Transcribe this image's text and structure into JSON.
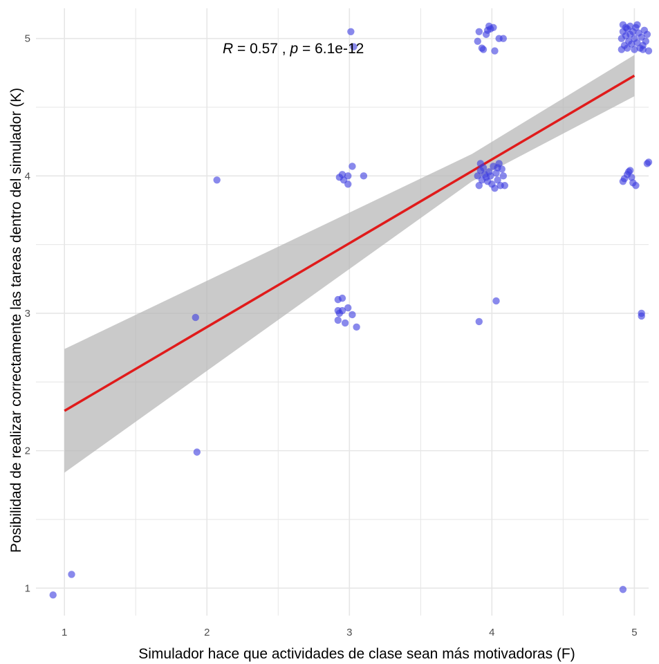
{
  "chart_data": {
    "type": "scatter",
    "title": "",
    "xlabel": "Simulador hace que actividades de clase sean más motivadoras (F)",
    "ylabel": "Posibilidad de realizar correctamente las tareas dentro del simulador (K)",
    "xlim": [
      0.8,
      5.1
    ],
    "ylim": [
      0.8,
      5.22
    ],
    "x_ticks": [
      1,
      2,
      3,
      4,
      5
    ],
    "y_ticks": [
      1,
      2,
      3,
      4,
      5
    ],
    "grid": true,
    "legend": "none",
    "annotation": {
      "r_symbol": "R",
      "r_text": " = 0.57 , ",
      "p_symbol": "p",
      "p_text": " = 6.1e-12"
    },
    "colors": {
      "points": "#3a3ae0",
      "fit_line": "#e01b1b",
      "confidence_band": "#b3b3b3",
      "grid": "#e6e6e6"
    },
    "fit": {
      "x": [
        1,
        5
      ],
      "y": [
        2.29,
        4.73
      ],
      "ci_lower": [
        1.84,
        4.58
      ],
      "ci_upper": [
        2.74,
        4.88
      ],
      "ci_mid_x": 3.86,
      "ci_mid_lower": 3.96,
      "ci_mid_upper": 4.16
    },
    "points": [
      {
        "x": 0.92,
        "y": 0.95
      },
      {
        "x": 1.05,
        "y": 1.1
      },
      {
        "x": 1.92,
        "y": 2.97
      },
      {
        "x": 1.93,
        "y": 1.99
      },
      {
        "x": 2.07,
        "y": 3.97
      },
      {
        "x": 2.92,
        "y": 3.1
      },
      {
        "x": 2.95,
        "y": 3.11
      },
      {
        "x": 2.92,
        "y": 3.02
      },
      {
        "x": 2.93,
        "y": 3.0
      },
      {
        "x": 2.95,
        "y": 3.02
      },
      {
        "x": 2.99,
        "y": 3.04
      },
      {
        "x": 2.92,
        "y": 2.95
      },
      {
        "x": 2.97,
        "y": 2.93
      },
      {
        "x": 3.02,
        "y": 2.99
      },
      {
        "x": 3.05,
        "y": 2.9
      },
      {
        "x": 2.93,
        "y": 3.99
      },
      {
        "x": 2.95,
        "y": 4.01
      },
      {
        "x": 2.96,
        "y": 3.97
      },
      {
        "x": 2.99,
        "y": 3.94
      },
      {
        "x": 2.99,
        "y": 4.0
      },
      {
        "x": 3.02,
        "y": 4.07
      },
      {
        "x": 3.1,
        "y": 4.0
      },
      {
        "x": 3.01,
        "y": 5.05
      },
      {
        "x": 3.03,
        "y": 4.94
      },
      {
        "x": 3.91,
        "y": 2.94
      },
      {
        "x": 4.03,
        "y": 3.09
      },
      {
        "x": 3.9,
        "y": 4.0
      },
      {
        "x": 3.91,
        "y": 3.93
      },
      {
        "x": 3.92,
        "y": 4.04
      },
      {
        "x": 3.93,
        "y": 3.97
      },
      {
        "x": 3.94,
        "y": 4.06
      },
      {
        "x": 3.95,
        "y": 4.01
      },
      {
        "x": 3.96,
        "y": 3.99
      },
      {
        "x": 3.97,
        "y": 3.96
      },
      {
        "x": 3.98,
        "y": 4.03
      },
      {
        "x": 3.99,
        "y": 4.0
      },
      {
        "x": 4.0,
        "y": 3.94
      },
      {
        "x": 4.01,
        "y": 4.07
      },
      {
        "x": 4.02,
        "y": 3.91
      },
      {
        "x": 4.03,
        "y": 4.02
      },
      {
        "x": 4.04,
        "y": 3.97
      },
      {
        "x": 4.05,
        "y": 4.09
      },
      {
        "x": 4.06,
        "y": 3.93
      },
      {
        "x": 4.07,
        "y": 4.05
      },
      {
        "x": 4.08,
        "y": 4.0
      },
      {
        "x": 4.09,
        "y": 3.93
      },
      {
        "x": 3.92,
        "y": 4.09
      },
      {
        "x": 4.04,
        "y": 4.06
      },
      {
        "x": 3.9,
        "y": 4.98
      },
      {
        "x": 3.91,
        "y": 5.05
      },
      {
        "x": 3.93,
        "y": 4.93
      },
      {
        "x": 3.94,
        "y": 4.92
      },
      {
        "x": 3.96,
        "y": 5.03
      },
      {
        "x": 3.97,
        "y": 5.06
      },
      {
        "x": 3.98,
        "y": 5.09
      },
      {
        "x": 3.99,
        "y": 5.07
      },
      {
        "x": 4.01,
        "y": 5.08
      },
      {
        "x": 4.02,
        "y": 4.91
      },
      {
        "x": 4.05,
        "y": 5.0
      },
      {
        "x": 4.08,
        "y": 5.0
      },
      {
        "x": 4.92,
        "y": 0.99
      },
      {
        "x": 5.05,
        "y": 3.0
      },
      {
        "x": 5.05,
        "y": 2.98
      },
      {
        "x": 4.92,
        "y": 3.96
      },
      {
        "x": 4.93,
        "y": 3.98
      },
      {
        "x": 4.95,
        "y": 4.01
      },
      {
        "x": 4.96,
        "y": 4.03
      },
      {
        "x": 4.97,
        "y": 4.04
      },
      {
        "x": 4.98,
        "y": 3.99
      },
      {
        "x": 4.99,
        "y": 3.95
      },
      {
        "x": 5.01,
        "y": 3.93
      },
      {
        "x": 5.09,
        "y": 4.09
      },
      {
        "x": 5.1,
        "y": 4.1
      },
      {
        "x": 4.91,
        "y": 4.92
      },
      {
        "x": 4.91,
        "y": 5.0
      },
      {
        "x": 4.92,
        "y": 5.05
      },
      {
        "x": 4.92,
        "y": 5.1
      },
      {
        "x": 4.93,
        "y": 4.95
      },
      {
        "x": 4.94,
        "y": 5.02
      },
      {
        "x": 4.95,
        "y": 5.07
      },
      {
        "x": 4.95,
        "y": 4.93
      },
      {
        "x": 4.96,
        "y": 4.98
      },
      {
        "x": 4.97,
        "y": 5.09
      },
      {
        "x": 4.97,
        "y": 5.03
      },
      {
        "x": 4.98,
        "y": 4.96
      },
      {
        "x": 4.99,
        "y": 5.05
      },
      {
        "x": 5.0,
        "y": 4.92
      },
      {
        "x": 5.0,
        "y": 5.0
      },
      {
        "x": 5.01,
        "y": 5.08
      },
      {
        "x": 5.02,
        "y": 4.97
      },
      {
        "x": 5.03,
        "y": 5.04
      },
      {
        "x": 5.04,
        "y": 4.93
      },
      {
        "x": 5.05,
        "y": 5.01
      },
      {
        "x": 5.06,
        "y": 4.95
      },
      {
        "x": 5.07,
        "y": 5.06
      },
      {
        "x": 5.08,
        "y": 4.98
      },
      {
        "x": 5.09,
        "y": 5.03
      },
      {
        "x": 5.1,
        "y": 4.91
      },
      {
        "x": 5.02,
        "y": 5.1
      },
      {
        "x": 4.94,
        "y": 5.08
      },
      {
        "x": 5.06,
        "y": 4.92
      }
    ]
  }
}
